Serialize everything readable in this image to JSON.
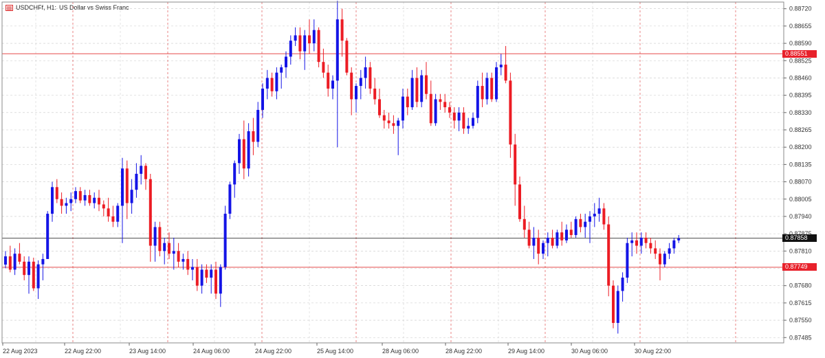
{
  "window": {
    "title_symbol": "USDCHFf, H1:",
    "title_desc": "US Dollar vs Swiss Franc",
    "icon": "chart-window-icon"
  },
  "colors": {
    "bull": "#1414e6",
    "bear": "#ec1c24",
    "grid": "#c8c8c8",
    "vline": "#e05050",
    "level_line": "#e23030",
    "current_line": "#303030",
    "axis_text": "#333333"
  },
  "chart_data": {
    "type": "candlestick",
    "symbol": "USDCHFf",
    "timeframe": "H1",
    "title": "US Dollar vs Swiss Franc",
    "y_ticks": [
      "0.88720",
      "0.88655",
      "0.88590",
      "0.88525",
      "0.88460",
      "0.88395",
      "0.88330",
      "0.88265",
      "0.88200",
      "0.88135",
      "0.88070",
      "0.88005",
      "0.87940",
      "0.87875",
      "0.87810",
      "0.87745",
      "0.87680",
      "0.87615",
      "0.87550",
      "0.87485"
    ],
    "ylim": [
      0.87465,
      0.88745
    ],
    "x_ticks": [
      "22 Aug 2023",
      "22 Aug 22:00",
      "23 Aug 14:00",
      "24 Aug 06:00",
      "24 Aug 22:00",
      "25 Aug 14:00",
      "28 Aug 06:00",
      "28 Aug 22:00",
      "29 Aug 14:00",
      "30 Aug 06:00",
      "30 Aug 22:00"
    ],
    "levels": [
      {
        "label": "0.88551",
        "value": 0.88551,
        "style": "red"
      },
      {
        "label": "0.87858",
        "value": 0.87858,
        "style": "black"
      },
      {
        "label": "0.87749",
        "value": 0.87749,
        "style": "red"
      }
    ],
    "grid": true,
    "candles": [
      [
        0.87759,
        0.8781,
        0.87745,
        0.8779
      ],
      [
        0.8779,
        0.8783,
        0.8773,
        0.8774
      ],
      [
        0.8774,
        0.8782,
        0.8772,
        0.878
      ],
      [
        0.878,
        0.8784,
        0.8776,
        0.8777
      ],
      [
        0.8777,
        0.8779,
        0.877,
        0.8772
      ],
      [
        0.8772,
        0.8779,
        0.8765,
        0.8777
      ],
      [
        0.8777,
        0.87785,
        0.8766,
        0.8767
      ],
      [
        0.8767,
        0.87775,
        0.8763,
        0.8776
      ],
      [
        0.8776,
        0.878,
        0.877,
        0.8778
      ],
      [
        0.8778,
        0.8796,
        0.8778,
        0.8795
      ],
      [
        0.8795,
        0.8807,
        0.8792,
        0.8805
      ],
      [
        0.8805,
        0.8808,
        0.8799,
        0.88005
      ],
      [
        0.88005,
        0.8803,
        0.8795,
        0.8798
      ],
      [
        0.8798,
        0.8801,
        0.8795,
        0.8799
      ],
      [
        0.8799,
        0.8803,
        0.8796,
        0.88005
      ],
      [
        0.88005,
        0.8805,
        0.8799,
        0.88035
      ],
      [
        0.88035,
        0.8805,
        0.8799,
        0.88
      ],
      [
        0.88,
        0.8804,
        0.8798,
        0.8802
      ],
      [
        0.8802,
        0.8804,
        0.8798,
        0.8799
      ],
      [
        0.8799,
        0.8803,
        0.8797,
        0.8801
      ],
      [
        0.8801,
        0.8804,
        0.8796,
        0.87985
      ],
      [
        0.87985,
        0.88,
        0.8794,
        0.8797
      ],
      [
        0.8797,
        0.8801,
        0.8792,
        0.8794
      ],
      [
        0.8794,
        0.8798,
        0.879,
        0.8792
      ],
      [
        0.8792,
        0.8799,
        0.879,
        0.8798
      ],
      [
        0.8798,
        0.8816,
        0.8784,
        0.8812
      ],
      [
        0.8812,
        0.8815,
        0.8793,
        0.8799
      ],
      [
        0.8799,
        0.8808,
        0.8795,
        0.8804
      ],
      [
        0.8804,
        0.8814,
        0.8801,
        0.881
      ],
      [
        0.881,
        0.8817,
        0.8806,
        0.8813
      ],
      [
        0.8813,
        0.8814,
        0.8804,
        0.8808
      ],
      [
        0.8808,
        0.881,
        0.8777,
        0.8783
      ],
      [
        0.8783,
        0.8792,
        0.8777,
        0.879
      ],
      [
        0.879,
        0.8792,
        0.8779,
        0.8781
      ],
      [
        0.8781,
        0.8786,
        0.8776,
        0.8784
      ],
      [
        0.8784,
        0.8788,
        0.8778,
        0.878
      ],
      [
        0.878,
        0.8786,
        0.8774,
        0.8781
      ],
      [
        0.8781,
        0.8784,
        0.8775,
        0.8777
      ],
      [
        0.8777,
        0.878,
        0.8774,
        0.8778
      ],
      [
        0.8778,
        0.8781,
        0.8772,
        0.8774
      ],
      [
        0.8774,
        0.8778,
        0.877,
        0.8775
      ],
      [
        0.8775,
        0.8778,
        0.8766,
        0.8768
      ],
      [
        0.8768,
        0.8776,
        0.8765,
        0.8774
      ],
      [
        0.8774,
        0.8776,
        0.8769,
        0.8771
      ],
      [
        0.8771,
        0.8776,
        0.8765,
        0.8774
      ],
      [
        0.8774,
        0.8777,
        0.8763,
        0.8765
      ],
      [
        0.8765,
        0.8776,
        0.876,
        0.8775
      ],
      [
        0.8775,
        0.8798,
        0.8774,
        0.8795
      ],
      [
        0.8795,
        0.8807,
        0.8793,
        0.8806
      ],
      [
        0.8806,
        0.8815,
        0.8801,
        0.8814
      ],
      [
        0.8814,
        0.8825,
        0.881,
        0.8823
      ],
      [
        0.8823,
        0.883,
        0.8808,
        0.8812
      ],
      [
        0.8812,
        0.8829,
        0.8809,
        0.8826
      ],
      [
        0.8826,
        0.8831,
        0.8817,
        0.8822
      ],
      [
        0.8822,
        0.8837,
        0.882,
        0.8834
      ],
      [
        0.8834,
        0.8844,
        0.8831,
        0.8842
      ],
      [
        0.8842,
        0.8849,
        0.8838,
        0.8846
      ],
      [
        0.8846,
        0.8848,
        0.8839,
        0.8841
      ],
      [
        0.8841,
        0.885,
        0.8838,
        0.8848
      ],
      [
        0.8848,
        0.8851,
        0.8842,
        0.885
      ],
      [
        0.885,
        0.8856,
        0.8846,
        0.8854
      ],
      [
        0.8854,
        0.8862,
        0.8851,
        0.886
      ],
      [
        0.886,
        0.8865,
        0.8858,
        0.8862
      ],
      [
        0.8862,
        0.8865,
        0.8853,
        0.8856
      ],
      [
        0.8856,
        0.8864,
        0.8849,
        0.8862
      ],
      [
        0.8862,
        0.8868,
        0.8855,
        0.8859
      ],
      [
        0.8859,
        0.8868,
        0.8856,
        0.8864
      ],
      [
        0.8864,
        0.8865,
        0.885,
        0.8852
      ],
      [
        0.8852,
        0.8857,
        0.8846,
        0.8848
      ],
      [
        0.8848,
        0.8851,
        0.8839,
        0.8842
      ],
      [
        0.8842,
        0.8847,
        0.8838,
        0.8845
      ],
      [
        0.8845,
        0.8875,
        0.882,
        0.8868
      ],
      [
        0.8868,
        0.8872,
        0.8854,
        0.886
      ],
      [
        0.886,
        0.8861,
        0.8847,
        0.8848
      ],
      [
        0.8848,
        0.885,
        0.8832,
        0.8838
      ],
      [
        0.8838,
        0.8844,
        0.8833,
        0.8843
      ],
      [
        0.8843,
        0.8849,
        0.8838,
        0.8846
      ],
      [
        0.8846,
        0.8854,
        0.8842,
        0.885
      ],
      [
        0.885,
        0.8852,
        0.884,
        0.8842
      ],
      [
        0.8842,
        0.8846,
        0.8836,
        0.8838
      ],
      [
        0.8838,
        0.8842,
        0.8831,
        0.8832
      ],
      [
        0.8832,
        0.8834,
        0.8827,
        0.883
      ],
      [
        0.883,
        0.8833,
        0.8827,
        0.8829
      ],
      [
        0.8829,
        0.8832,
        0.8825,
        0.8828
      ],
      [
        0.8828,
        0.8831,
        0.8817,
        0.883
      ],
      [
        0.883,
        0.8842,
        0.8827,
        0.8839
      ],
      [
        0.8839,
        0.8842,
        0.8832,
        0.8835
      ],
      [
        0.8835,
        0.8849,
        0.8834,
        0.8846
      ],
      [
        0.8846,
        0.885,
        0.8835,
        0.8837
      ],
      [
        0.8837,
        0.8849,
        0.8835,
        0.8847
      ],
      [
        0.8847,
        0.8852,
        0.8838,
        0.884
      ],
      [
        0.884,
        0.8845,
        0.8828,
        0.8829
      ],
      [
        0.8829,
        0.884,
        0.8828,
        0.8838
      ],
      [
        0.8838,
        0.884,
        0.8834,
        0.8837
      ],
      [
        0.8837,
        0.884,
        0.8833,
        0.8835
      ],
      [
        0.8835,
        0.8837,
        0.8831,
        0.8833
      ],
      [
        0.8833,
        0.8835,
        0.8827,
        0.883
      ],
      [
        0.883,
        0.8835,
        0.8826,
        0.8833
      ],
      [
        0.8833,
        0.8835,
        0.8825,
        0.8827
      ],
      [
        0.8827,
        0.8831,
        0.8825,
        0.8828
      ],
      [
        0.8828,
        0.8833,
        0.8827,
        0.8831
      ],
      [
        0.8831,
        0.8845,
        0.8829,
        0.8843
      ],
      [
        0.8843,
        0.8848,
        0.8835,
        0.8838
      ],
      [
        0.8838,
        0.8848,
        0.8836,
        0.8846
      ],
      [
        0.8846,
        0.8848,
        0.8837,
        0.8838
      ],
      [
        0.8838,
        0.8852,
        0.8837,
        0.885
      ],
      [
        0.885,
        0.8855,
        0.8847,
        0.8851
      ],
      [
        0.8851,
        0.8858,
        0.8844,
        0.8845
      ],
      [
        0.8845,
        0.8848,
        0.8816,
        0.8821
      ],
      [
        0.8821,
        0.8825,
        0.8798,
        0.8806
      ],
      [
        0.8806,
        0.8809,
        0.8792,
        0.8793
      ],
      [
        0.8793,
        0.8798,
        0.8786,
        0.8789
      ],
      [
        0.8789,
        0.8792,
        0.8782,
        0.8783
      ],
      [
        0.8783,
        0.879,
        0.8778,
        0.8786
      ],
      [
        0.8786,
        0.8789,
        0.8776,
        0.878
      ],
      [
        0.878,
        0.8785,
        0.8778,
        0.8784
      ],
      [
        0.8784,
        0.8788,
        0.8779,
        0.8786
      ],
      [
        0.8786,
        0.8789,
        0.8782,
        0.8783
      ],
      [
        0.8783,
        0.8789,
        0.8782,
        0.8788
      ],
      [
        0.8788,
        0.8792,
        0.8783,
        0.8785
      ],
      [
        0.8785,
        0.8791,
        0.8784,
        0.8789
      ],
      [
        0.8789,
        0.8792,
        0.8786,
        0.8787
      ],
      [
        0.8787,
        0.8794,
        0.8786,
        0.8793
      ],
      [
        0.8793,
        0.8795,
        0.8788,
        0.879
      ],
      [
        0.879,
        0.8795,
        0.8786,
        0.8792
      ],
      [
        0.8792,
        0.8796,
        0.8784,
        0.8794
      ],
      [
        0.8794,
        0.8799,
        0.879,
        0.8795
      ],
      [
        0.8795,
        0.8801,
        0.8792,
        0.8797
      ],
      [
        0.8797,
        0.8799,
        0.8789,
        0.8791
      ],
      [
        0.8791,
        0.8794,
        0.8764,
        0.8768
      ],
      [
        0.8768,
        0.877,
        0.8752,
        0.8754
      ],
      [
        0.8754,
        0.8768,
        0.875,
        0.8766
      ],
      [
        0.8766,
        0.8773,
        0.8762,
        0.8771
      ],
      [
        0.8771,
        0.8786,
        0.8769,
        0.8784
      ],
      [
        0.8784,
        0.8788,
        0.8779,
        0.8785
      ],
      [
        0.8785,
        0.8788,
        0.878,
        0.8783
      ],
      [
        0.8783,
        0.8788,
        0.878,
        0.8786
      ],
      [
        0.8786,
        0.8788,
        0.8782,
        0.8784
      ],
      [
        0.8784,
        0.8786,
        0.878,
        0.8782
      ],
      [
        0.8782,
        0.8785,
        0.8778,
        0.878
      ],
      [
        0.878,
        0.8782,
        0.877,
        0.8776
      ],
      [
        0.8776,
        0.8781,
        0.8775,
        0.878
      ],
      [
        0.878,
        0.8784,
        0.8778,
        0.8782
      ],
      [
        0.8782,
        0.8786,
        0.878,
        0.8785
      ],
      [
        0.8785,
        0.8787,
        0.8784,
        0.87858
      ]
    ]
  }
}
